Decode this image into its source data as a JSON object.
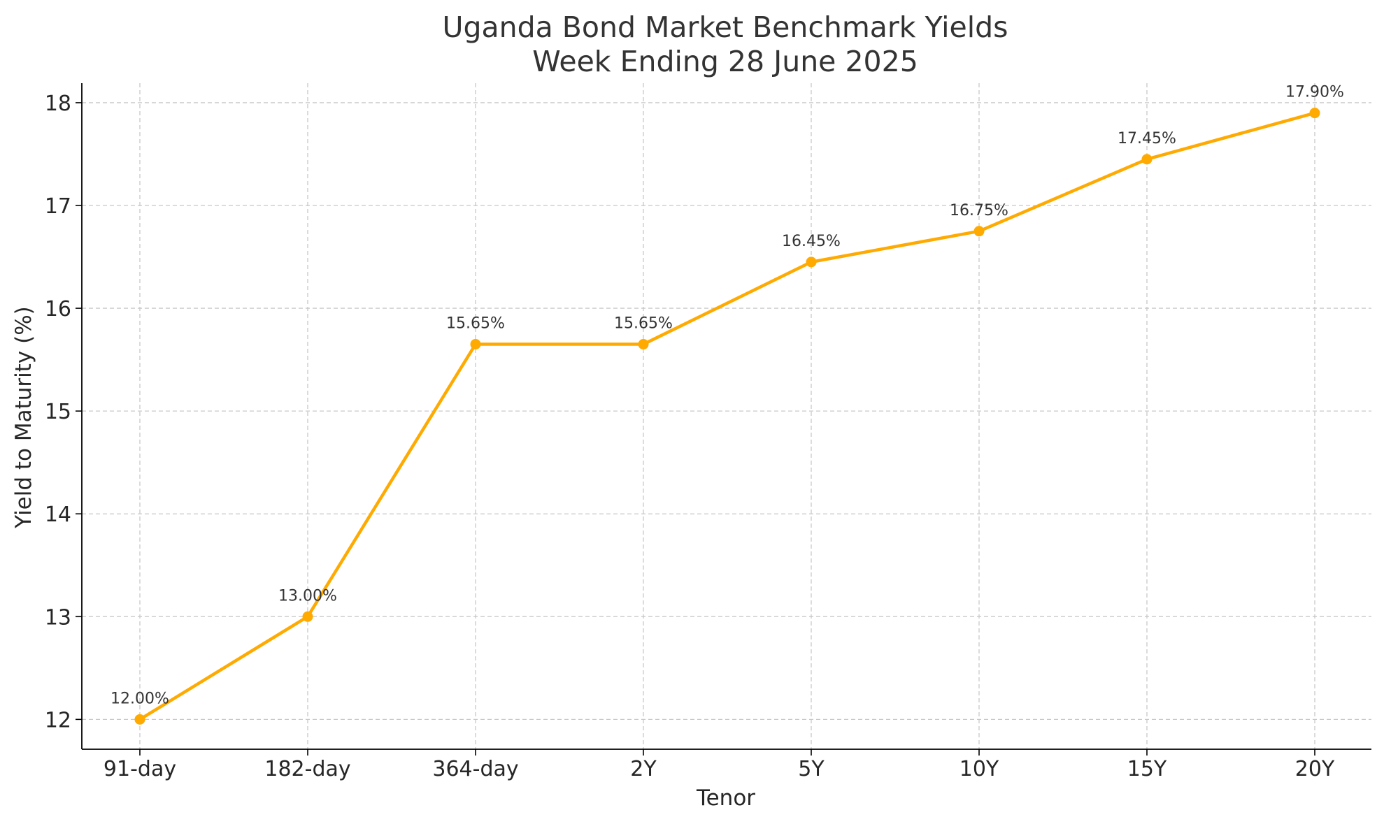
{
  "chart_data": {
    "type": "line",
    "title": [
      "Uganda Bond Market Benchmark Yields",
      "Week Ending 28 June 2025"
    ],
    "xlabel": "Tenor",
    "ylabel": "Yield to Maturity (%)",
    "categories": [
      "91-day",
      "182-day",
      "364-day",
      "2Y",
      "5Y",
      "10Y",
      "15Y",
      "20Y"
    ],
    "values": [
      12.0,
      13.0,
      15.65,
      15.65,
      16.45,
      16.75,
      17.45,
      17.9
    ],
    "data_labels": [
      "12.00%",
      "13.00%",
      "15.65%",
      "15.65%",
      "16.45%",
      "16.75%",
      "17.45%",
      "17.90%"
    ],
    "yticks": [
      12,
      13,
      14,
      15,
      16,
      17,
      18
    ],
    "ylim": [
      11.71,
      18.19
    ],
    "grid": true,
    "line_color": "#FFAA00"
  }
}
